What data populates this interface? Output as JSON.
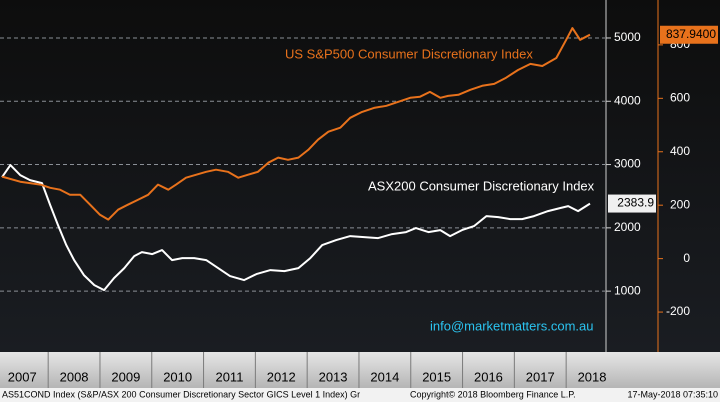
{
  "chart_data": {
    "type": "line",
    "series": [
      {
        "name": "ASX200 Consumer Discretionary Index",
        "color": "#ffffff",
        "axis": "y",
        "last_value_label": "2383.9",
        "x": [
          2007.11,
          2007.27,
          2007.46,
          2007.65,
          2007.88,
          2008.04,
          2008.19,
          2008.35,
          2008.5,
          2008.69,
          2008.89,
          2009.08,
          2009.27,
          2009.47,
          2009.66,
          2009.81,
          2010.01,
          2010.2,
          2010.39,
          2010.59,
          2010.82,
          2011.05,
          2011.28,
          2011.51,
          2011.78,
          2012.02,
          2012.29,
          2012.56,
          2012.83,
          2013.06,
          2013.29,
          2013.56,
          2013.83,
          2014.1,
          2014.37,
          2014.64,
          2014.91,
          2015.1,
          2015.34,
          2015.57,
          2015.76,
          2015.99,
          2016.22,
          2016.46,
          2016.69,
          2016.92,
          2017.15,
          2017.38,
          2017.65,
          2017.88,
          2018.04,
          2018.23,
          2018.46
        ],
        "values": [
          2802,
          2992,
          2834,
          2755,
          2707,
          2360,
          2043,
          1727,
          1490,
          1253,
          1095,
          1016,
          1206,
          1364,
          1553,
          1617,
          1585,
          1648,
          1490,
          1522,
          1522,
          1490,
          1364,
          1237,
          1174,
          1269,
          1332,
          1316,
          1364,
          1522,
          1727,
          1806,
          1870,
          1854,
          1838,
          1901,
          1933,
          1996,
          1933,
          1964,
          1870,
          1964,
          2028,
          2186,
          2170,
          2138,
          2138,
          2186,
          2265,
          2312,
          2344,
          2265,
          2383.9
        ]
      },
      {
        "name": "US S&P500 Consumer Discretionary Index",
        "color": "#e8721c",
        "axis": "y2",
        "last_value_label": "837.9400",
        "x": [
          2007.11,
          2007.46,
          2007.85,
          2008.04,
          2008.23,
          2008.42,
          2008.62,
          2008.81,
          2009.0,
          2009.16,
          2009.35,
          2009.54,
          2009.74,
          2009.93,
          2010.12,
          2010.32,
          2010.47,
          2010.66,
          2010.86,
          2011.05,
          2011.24,
          2011.47,
          2011.67,
          2011.86,
          2012.05,
          2012.25,
          2012.44,
          2012.63,
          2012.83,
          2013.02,
          2013.21,
          2013.41,
          2013.64,
          2013.83,
          2014.06,
          2014.29,
          2014.53,
          2014.76,
          2014.99,
          2015.18,
          2015.37,
          2015.57,
          2015.72,
          2015.92,
          2016.15,
          2016.38,
          2016.61,
          2016.84,
          2017.07,
          2017.31,
          2017.54,
          2017.81,
          2018.0,
          2018.12,
          2018.27,
          2018.46
        ],
        "values": [
          307,
          288,
          277,
          265,
          258,
          239,
          239,
          202,
          164,
          146,
          183,
          202,
          221,
          239,
          277,
          258,
          277,
          303,
          314,
          325,
          333,
          325,
          303,
          314,
          325,
          359,
          378,
          370,
          378,
          407,
          445,
          475,
          490,
          527,
          549,
          564,
          572,
          587,
          602,
          606,
          624,
          602,
          609,
          613,
          632,
          647,
          654,
          677,
          706,
          729,
          721,
          751,
          819,
          863,
          819,
          837.94
        ]
      }
    ],
    "xlim": [
      2007.07,
      2018.75
    ],
    "xticks": [
      2008,
      2009,
      2010,
      2011,
      2012,
      2013,
      2014,
      2015,
      2016,
      2017,
      2018
    ],
    "year_labels": [
      "2007",
      "2008",
      "2009",
      "2010",
      "2011",
      "2012",
      "2013",
      "2014",
      "2015",
      "2016",
      "2017",
      "2018"
    ],
    "ylim": [
      70,
      5600
    ],
    "yticks": [
      1000,
      2000,
      3000,
      4000,
      5000
    ],
    "y2lim": [
      -342,
      968
    ],
    "y2ticks": [
      -200,
      0,
      200,
      400,
      600,
      800
    ],
    "grid": true,
    "watermark": "info@marketmatters.com.au",
    "footer": {
      "index": "AS51COND Index (S&P/ASX 200 Consumer Discretionary Sector GICS Level 1 Index) Gr",
      "copyright": "Copyright© 2018 Bloomberg Finance L.P.",
      "timestamp": "17-May-2018 07:35:10"
    }
  }
}
